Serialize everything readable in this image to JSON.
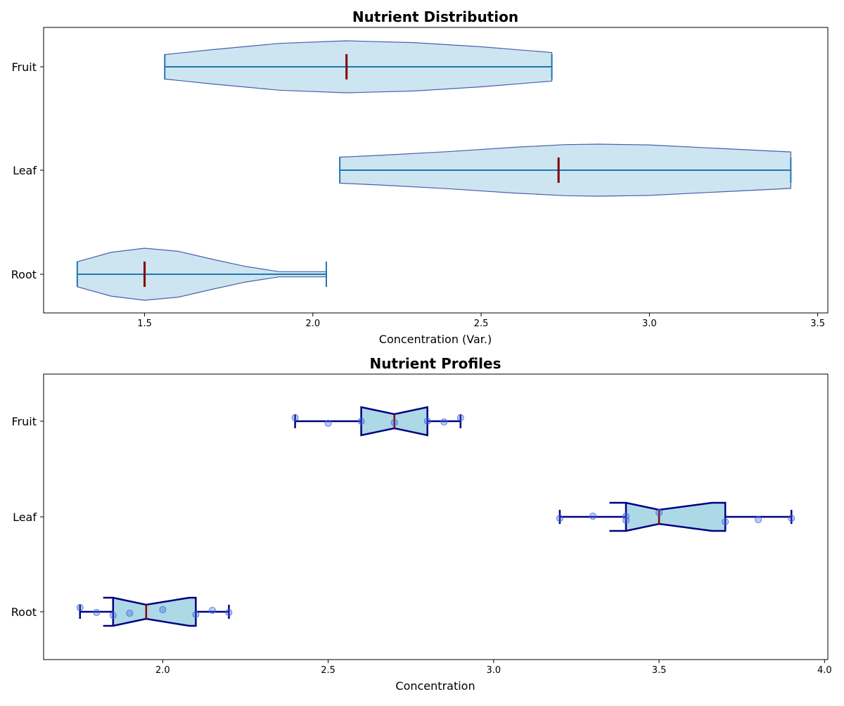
{
  "chart_data": [
    {
      "type": "violin",
      "title": "Nutrient Distribution",
      "xlabel": "Concentration (Var.)",
      "ylabel": "",
      "orientation": "horizontal",
      "xlim": [
        1.2,
        3.53
      ],
      "xticks": [
        1.5,
        2.0,
        2.5,
        3.0,
        3.5
      ],
      "xtick_labels": [
        "1.5",
        "2.0",
        "2.5",
        "3.0",
        "3.5"
      ],
      "categories": [
        "Root",
        "Leaf",
        "Fruit"
      ],
      "series": [
        {
          "category": "Root",
          "min": 1.3,
          "max": 2.04,
          "median": 1.5,
          "profile": [
            [
              1.3,
              0.48
            ],
            [
              1.4,
              0.84
            ],
            [
              1.5,
              1.0
            ],
            [
              1.6,
              0.88
            ],
            [
              1.7,
              0.58
            ],
            [
              1.8,
              0.3
            ],
            [
              1.9,
              0.1
            ],
            [
              2.0,
              0.1
            ],
            [
              2.04,
              0.1
            ]
          ]
        },
        {
          "category": "Leaf",
          "min": 2.08,
          "max": 3.42,
          "median": 2.73,
          "profile": [
            [
              2.08,
              0.5
            ],
            [
              2.2,
              0.57
            ],
            [
              2.4,
              0.71
            ],
            [
              2.6,
              0.88
            ],
            [
              2.75,
              0.98
            ],
            [
              2.85,
              1.0
            ],
            [
              3.0,
              0.97
            ],
            [
              3.2,
              0.84
            ],
            [
              3.42,
              0.7
            ]
          ]
        },
        {
          "category": "Fruit",
          "min": 1.56,
          "max": 2.71,
          "median": 2.1,
          "profile": [
            [
              1.56,
              0.47
            ],
            [
              1.7,
              0.66
            ],
            [
              1.9,
              0.9
            ],
            [
              2.1,
              1.0
            ],
            [
              2.3,
              0.93
            ],
            [
              2.5,
              0.77
            ],
            [
              2.71,
              0.55
            ]
          ]
        }
      ],
      "colors": {
        "fill": "#cde5f0",
        "edge": "#4a5fae",
        "line": "#1f77b4",
        "median": "#800000"
      }
    },
    {
      "type": "box",
      "title": "Nutrient Profiles",
      "xlabel": "Concentration",
      "ylabel": "",
      "orientation": "horizontal",
      "notched": true,
      "xlim": [
        1.64,
        4.01
      ],
      "xticks": [
        2.0,
        2.5,
        3.0,
        3.5,
        4.0
      ],
      "xtick_labels": [
        "2.0",
        "2.5",
        "3.0",
        "3.5",
        "4.0"
      ],
      "categories": [
        "Root",
        "Leaf",
        "Fruit"
      ],
      "series": [
        {
          "category": "Root",
          "whisker_low": 1.75,
          "q1": 1.85,
          "median": 1.95,
          "q3": 2.1,
          "whisker_high": 2.2,
          "notch_low": 1.82,
          "notch_high": 2.08,
          "points": [
            [
              1.75,
              -0.06
            ],
            [
              1.8,
              0.01
            ],
            [
              1.85,
              0.05
            ],
            [
              1.9,
              0.02
            ],
            [
              2.0,
              -0.03
            ],
            [
              2.1,
              0.04
            ],
            [
              2.15,
              -0.02
            ],
            [
              2.2,
              0.01
            ]
          ]
        },
        {
          "category": "Leaf",
          "whisker_low": 3.2,
          "q1": 3.4,
          "median": 3.5,
          "q3": 3.7,
          "whisker_high": 3.9,
          "notch_low": 3.35,
          "notch_high": 3.66,
          "points": [
            [
              3.2,
              0.02
            ],
            [
              3.3,
              -0.01
            ],
            [
              3.4,
              0.05
            ],
            [
              3.4,
              -0.01
            ],
            [
              3.5,
              -0.06
            ],
            [
              3.7,
              0.07
            ],
            [
              3.8,
              0.04
            ],
            [
              3.9,
              0.02
            ]
          ]
        },
        {
          "category": "Fruit",
          "whisker_low": 2.4,
          "q1": 2.6,
          "median": 2.7,
          "q3": 2.8,
          "whisker_high": 2.9,
          "notch_low": 2.6,
          "notch_high": 2.8,
          "points": [
            [
              2.4,
              -0.05
            ],
            [
              2.5,
              0.03
            ],
            [
              2.6,
              0.0
            ],
            [
              2.7,
              0.02
            ],
            [
              2.8,
              0.0
            ],
            [
              2.85,
              0.01
            ],
            [
              2.9,
              -0.05
            ]
          ]
        }
      ],
      "colors": {
        "fill": "#add8e6",
        "edge": "#000080",
        "median": "#8b0000",
        "points": "#4169e1"
      }
    }
  ]
}
